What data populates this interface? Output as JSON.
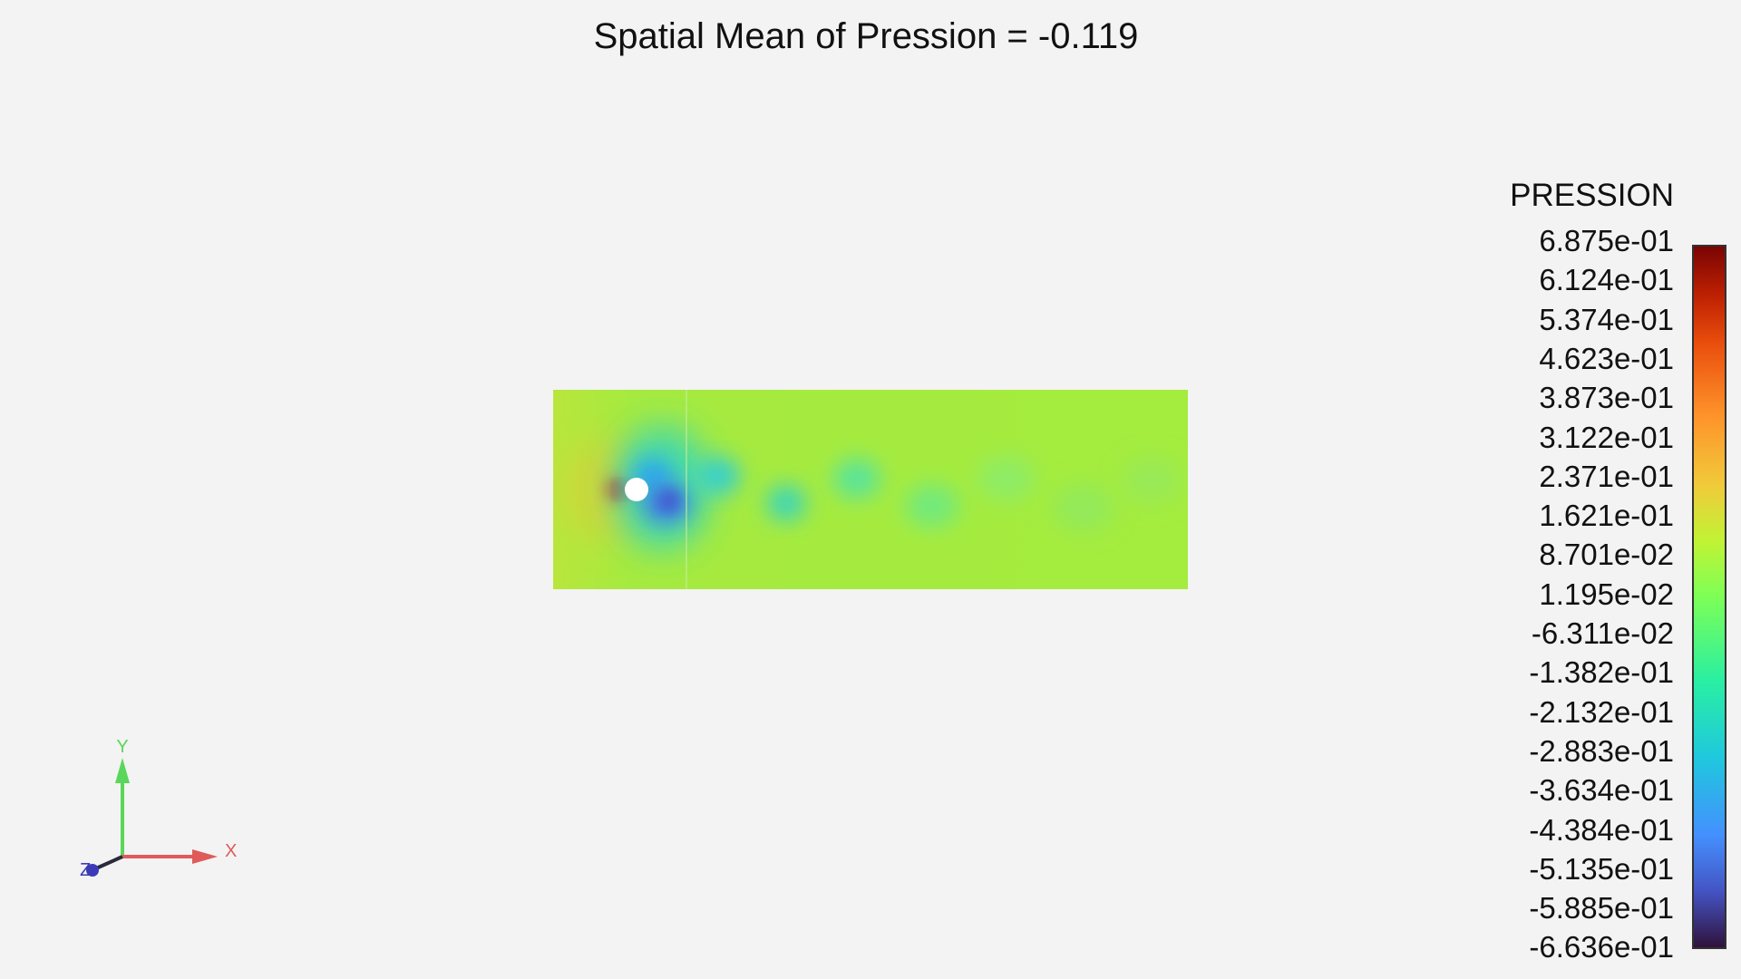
{
  "title": "Spatial Mean of Pression = -0.119",
  "legend": {
    "title": "PRESSION",
    "labels": [
      "6.875e-01",
      "6.124e-01",
      "5.374e-01",
      "4.623e-01",
      "3.873e-01",
      "3.122e-01",
      "2.371e-01",
      "1.621e-01",
      "8.701e-02",
      "1.195e-02",
      "-6.311e-02",
      "-1.382e-01",
      "-2.132e-01",
      "-2.883e-01",
      "-3.634e-01",
      "-4.384e-01",
      "-5.135e-01",
      "-5.885e-01",
      "-6.636e-01"
    ],
    "range": [
      -0.6636,
      0.6875
    ],
    "colormap": "turbo"
  },
  "axes": {
    "x_label": "X",
    "y_label": "Y",
    "z_label": "Z",
    "x_color": "#e05a5a",
    "y_color": "#5ad65a",
    "z_color": "#3b3bb8"
  },
  "colors": {
    "background": "#f3f3f3",
    "field_base": "#a8e83e",
    "obstacle": "#ffffff"
  }
}
